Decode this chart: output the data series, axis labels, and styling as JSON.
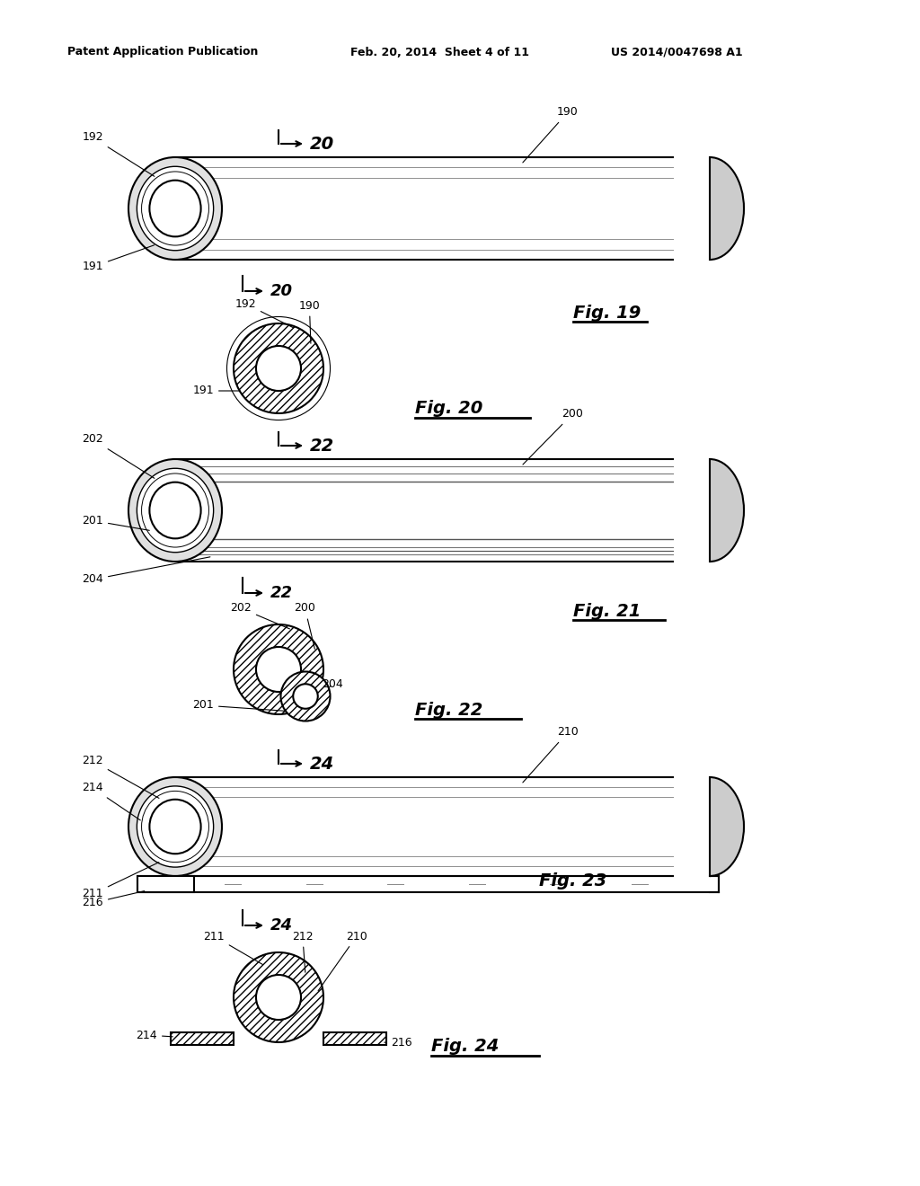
{
  "bg_color": "#ffffff",
  "header_left": "Patent Application Publication",
  "header_mid": "Feb. 20, 2014  Sheet 4 of 11",
  "header_right": "US 2014/0047698 A1",
  "line_color": "#000000",
  "fig19": {
    "label": "Fig. 19",
    "num": "20",
    "refs": [
      "192",
      "191",
      "190"
    ]
  },
  "fig20": {
    "label": "Fig. 20",
    "refs": [
      "192",
      "190",
      "191"
    ]
  },
  "fig21": {
    "label": "Fig. 21",
    "num": "22",
    "refs": [
      "202",
      "201",
      "204",
      "200"
    ]
  },
  "fig22": {
    "label": "Fig. 22",
    "refs": [
      "202",
      "200",
      "204",
      "201"
    ]
  },
  "fig23": {
    "label": "Fig. 23",
    "num": "24",
    "refs": [
      "212",
      "214",
      "211",
      "210",
      "216"
    ]
  },
  "fig24": {
    "label": "Fig. 24",
    "refs": [
      "211",
      "212",
      "210",
      "214",
      "216"
    ]
  }
}
